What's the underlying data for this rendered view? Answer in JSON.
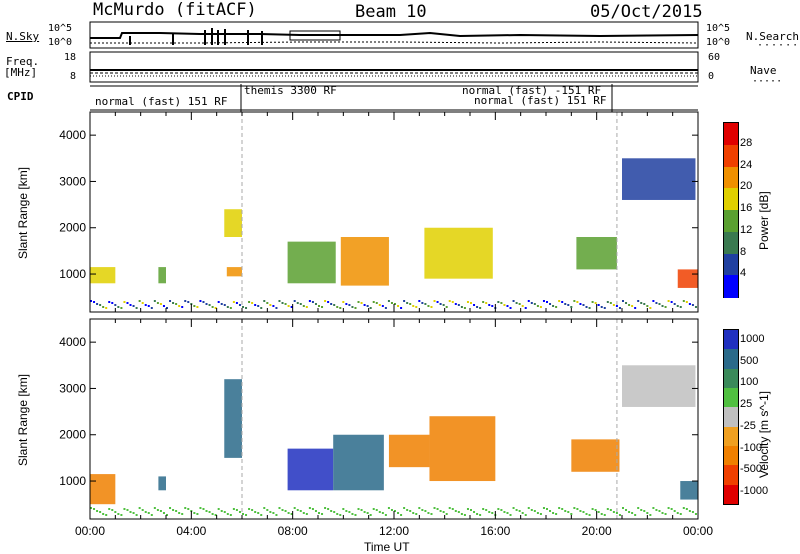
{
  "header": {
    "station": "McMurdo (fitACF)",
    "beam": "Beam 10",
    "date": "05/Oct/2015"
  },
  "strip": {
    "nsky_label": "N.Sky",
    "nsky_ticks": [
      "10^5",
      "10^0"
    ],
    "nsearch_label": "N.Search",
    "nsearch_ticks": [
      "10^5",
      "10^0"
    ],
    "freq_label": "Freq.",
    "freq_unit": "[MHz]",
    "freq_ticks": [
      "18",
      "8"
    ],
    "nave_label": "Nave",
    "nave_ticks": [
      "60",
      "0"
    ],
    "cpid_label": "CPID",
    "cpid_entries": [
      "normal (fast) 151 RF",
      "themis 3300 RF",
      "normal (fast) -151 RF",
      "normal (fast) 151 RF"
    ]
  },
  "panels": {
    "ylabel": "Slant Range [km]",
    "xlabel": "Time UT",
    "power_title": "Power [dB]",
    "velocity_title": "Velocity [m s^-1]"
  },
  "colors": {
    "power": [
      "#0000ff",
      "#2040a0",
      "#3a7a50",
      "#5aa030",
      "#e0d000",
      "#f09000",
      "#f04000",
      "#e00000"
    ],
    "velocity_pos": [
      "#2030c0",
      "#2a6a8a",
      "#3a8a5a",
      "#50c040"
    ],
    "velocity_zero": "#c0c0c0",
    "velocity_neg": [
      "#f0a020",
      "#f08000",
      "#f04000",
      "#e00000"
    ]
  },
  "chart_data": [
    {
      "type": "heatmap",
      "panel": "power",
      "x_ticks": [
        "00:00",
        "04:00",
        "08:00",
        "12:00",
        "16:00",
        "20:00",
        "00:00"
      ],
      "xlim_hours": [
        0,
        24
      ],
      "ylim_km": [
        180,
        4500
      ],
      "y_ticks": [
        1000,
        2000,
        3000,
        4000
      ],
      "colorbar": {
        "ticks": [
          4,
          8,
          12,
          16,
          20,
          24,
          28
        ],
        "range": [
          0,
          30
        ],
        "label": "Power [dB]"
      },
      "patches": [
        {
          "t_start": 0.0,
          "t_end": 1.0,
          "range_km": [
            800,
            1150
          ],
          "value": 16
        },
        {
          "t_start": 2.7,
          "t_end": 3.0,
          "range_km": [
            800,
            1150
          ],
          "value": 12
        },
        {
          "t_start": 5.3,
          "t_end": 6.0,
          "range_km": [
            1800,
            2400
          ],
          "value": 18
        },
        {
          "t_start": 5.4,
          "t_end": 6.0,
          "range_km": [
            950,
            1150
          ],
          "value": 20
        },
        {
          "t_start": 7.8,
          "t_end": 9.7,
          "range_km": [
            800,
            1700
          ],
          "value": 14
        },
        {
          "t_start": 9.9,
          "t_end": 11.8,
          "range_km": [
            750,
            1800
          ],
          "value": 20
        },
        {
          "t_start": 13.2,
          "t_end": 15.9,
          "range_km": [
            900,
            2000
          ],
          "value": 18
        },
        {
          "t_start": 19.2,
          "t_end": 20.8,
          "range_km": [
            1100,
            1800
          ],
          "value": 14
        },
        {
          "t_start": 21.0,
          "t_end": 23.9,
          "range_km": [
            2600,
            3500
          ],
          "value": 6
        },
        {
          "t_start": 23.2,
          "t_end": 24.0,
          "range_km": [
            700,
            1100
          ],
          "value": 24
        }
      ]
    },
    {
      "type": "heatmap",
      "panel": "velocity",
      "x_ticks": [
        "00:00",
        "04:00",
        "08:00",
        "12:00",
        "16:00",
        "20:00",
        "00:00"
      ],
      "xlim_hours": [
        0,
        24
      ],
      "ylim_km": [
        180,
        4500
      ],
      "y_ticks": [
        1000,
        2000,
        3000,
        4000
      ],
      "colorbar": {
        "ticks": [
          1000,
          500,
          100,
          25,
          -25,
          -100,
          -500,
          -1000
        ],
        "label": "Velocity [m s^-1]"
      },
      "patches": [
        {
          "t_start": 0.0,
          "t_end": 1.0,
          "range_km": [
            500,
            1150
          ],
          "value": -100
        },
        {
          "t_start": 2.7,
          "t_end": 3.0,
          "range_km": [
            800,
            1100
          ],
          "value": 100
        },
        {
          "t_start": 5.3,
          "t_end": 6.0,
          "range_km": [
            1500,
            3200
          ],
          "value": 200
        },
        {
          "t_start": 7.8,
          "t_end": 9.6,
          "range_km": [
            800,
            1700
          ],
          "value": 800
        },
        {
          "t_start": 9.6,
          "t_end": 11.6,
          "range_km": [
            800,
            2000
          ],
          "value": 300
        },
        {
          "t_start": 11.8,
          "t_end": 13.4,
          "range_km": [
            1300,
            2000
          ],
          "value": -100
        },
        {
          "t_start": 13.4,
          "t_end": 16.0,
          "range_km": [
            1000,
            2400
          ],
          "value": -100
        },
        {
          "t_start": 19.0,
          "t_end": 20.9,
          "range_km": [
            1200,
            1900
          ],
          "value": -100
        },
        {
          "t_start": 21.0,
          "t_end": 23.9,
          "range_km": [
            2600,
            3500
          ],
          "value": 10
        },
        {
          "t_start": 23.3,
          "t_end": 24.0,
          "range_km": [
            600,
            1000
          ],
          "value": 100
        }
      ]
    }
  ]
}
